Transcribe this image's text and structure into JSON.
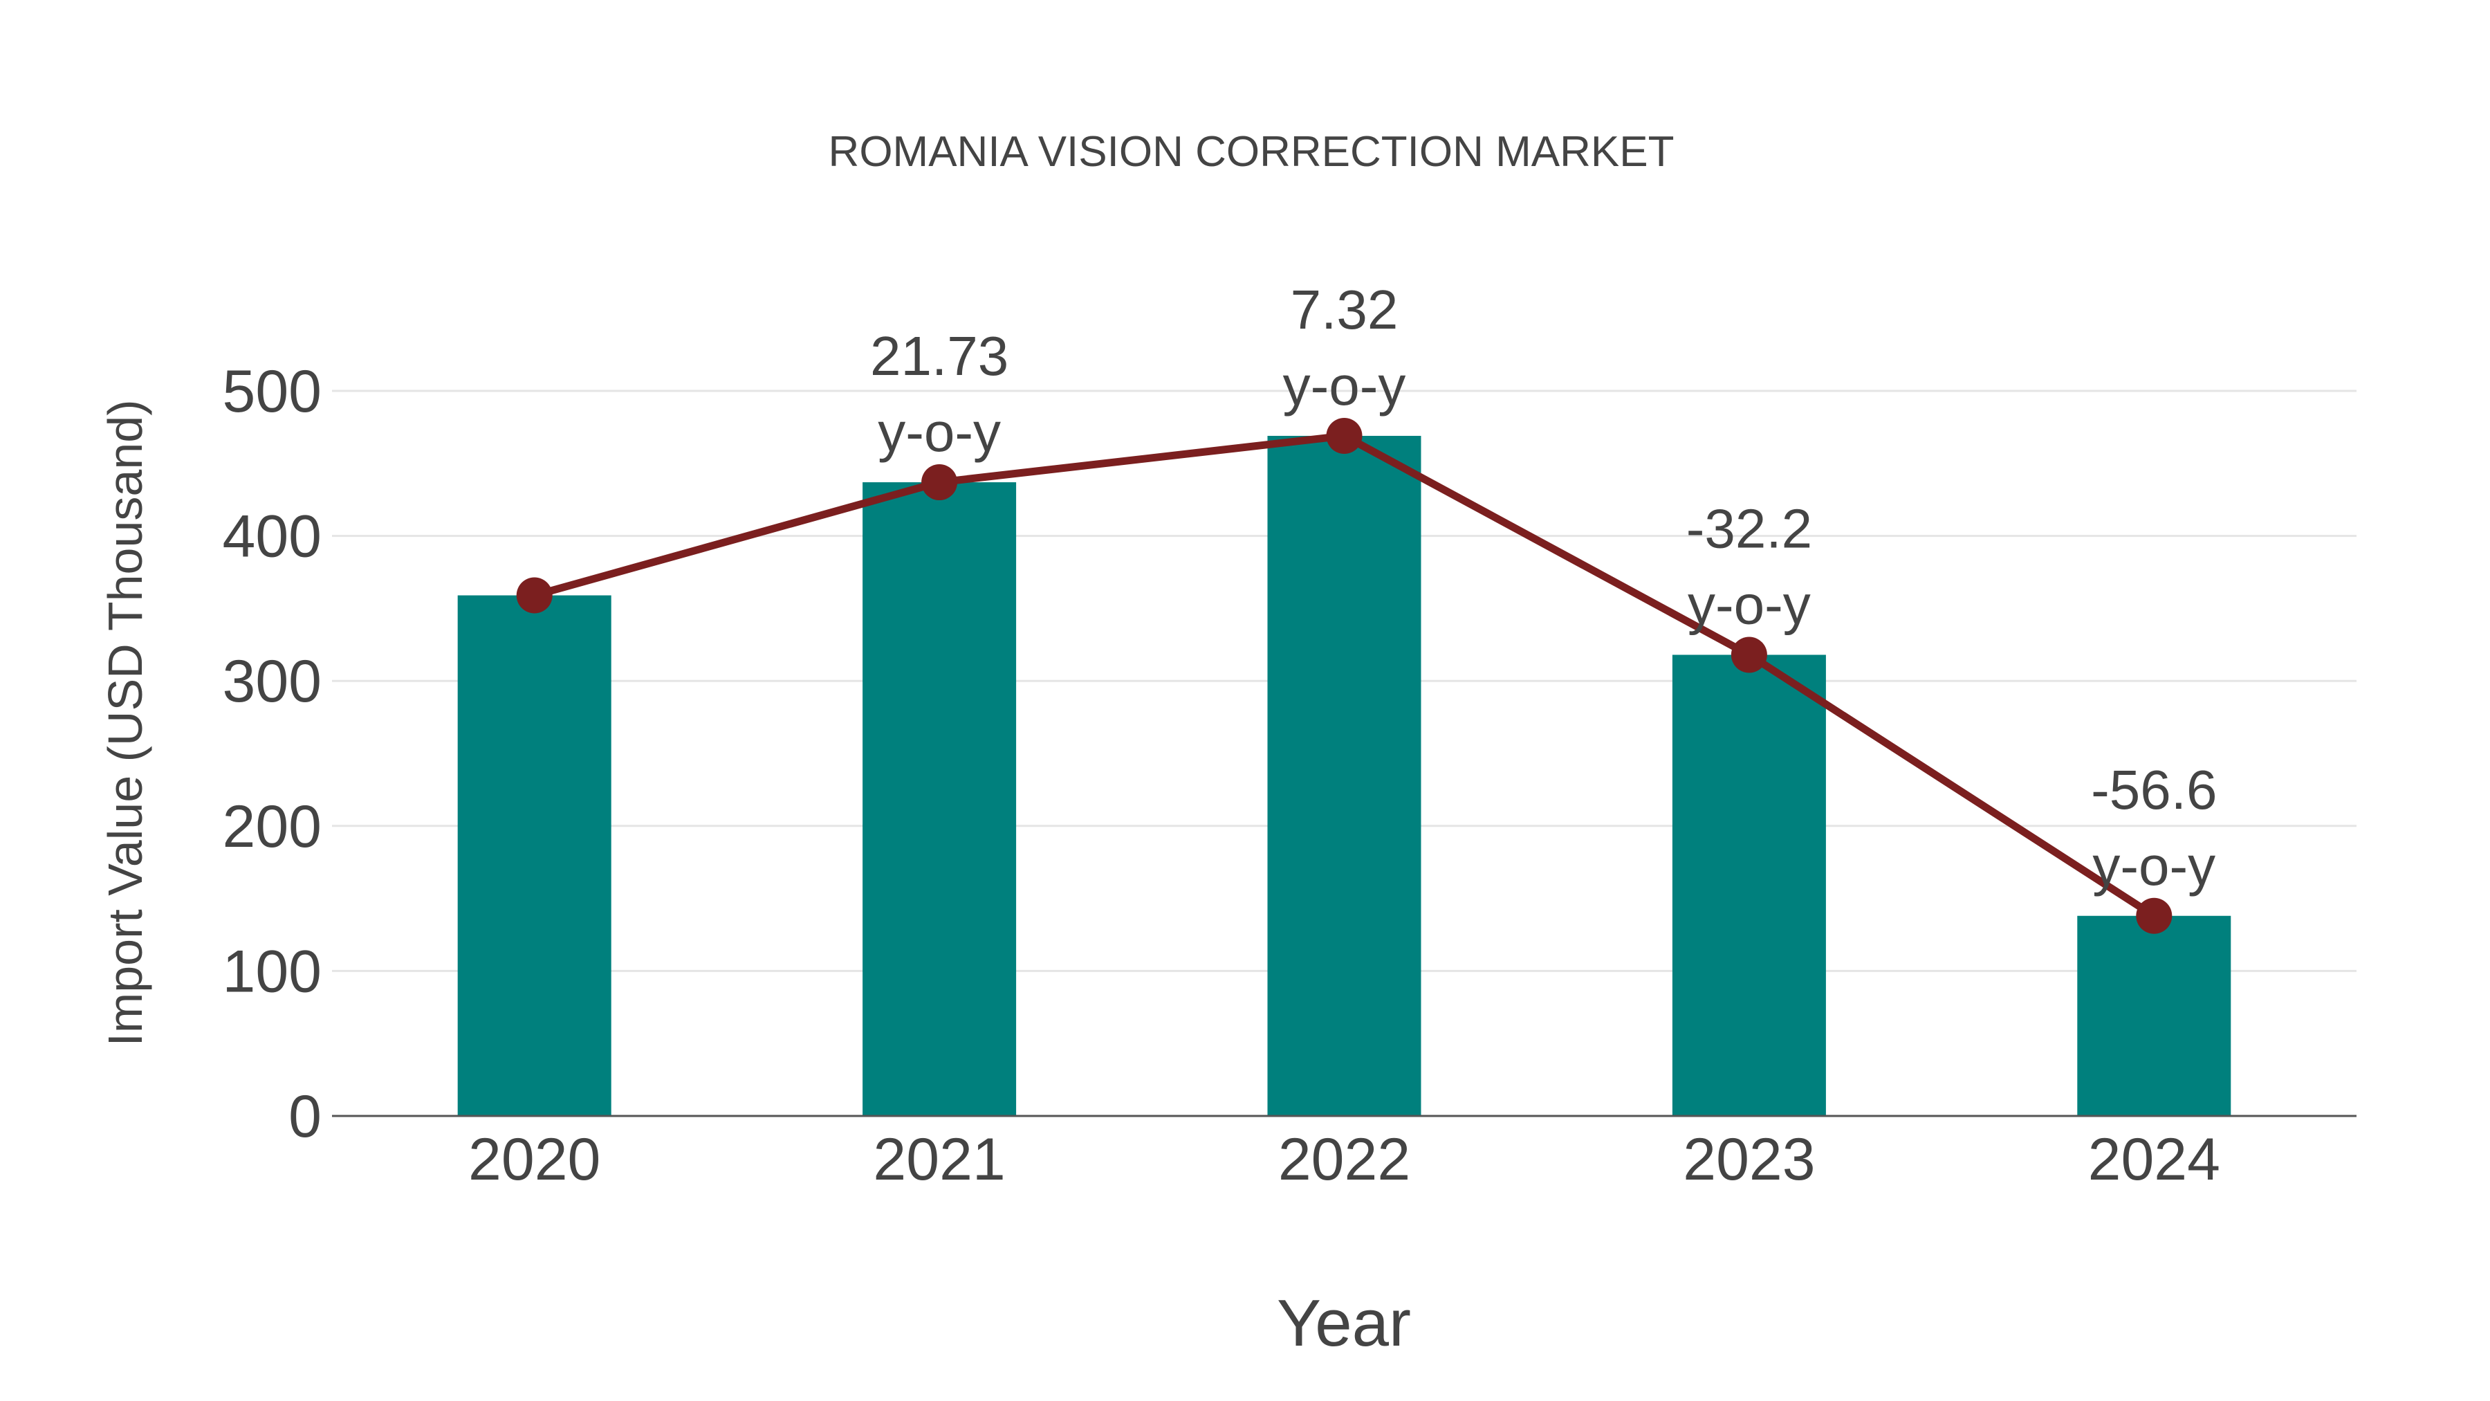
{
  "chart_data": {
    "type": "bar",
    "title": "ROMANIA VISION CORRECTION MARKET",
    "xlabel": "Year",
    "ylabel": "Import Value (USD Thousand)",
    "categories": [
      "2020",
      "2021",
      "2022",
      "2023",
      "2024"
    ],
    "series": [
      {
        "name": "Import Value (bar)",
        "type": "bar",
        "values": [
          359,
          437,
          469,
          318,
          138
        ],
        "color": "#00807D"
      },
      {
        "name": "Import Value (line)",
        "type": "line",
        "values": [
          359,
          437,
          469,
          318,
          138
        ],
        "color": "#7B1F1F"
      }
    ],
    "annotations": [
      {
        "category": "2021",
        "value": "21.73",
        "suffix": "y-o-y"
      },
      {
        "category": "2022",
        "value": "7.32",
        "suffix": "y-o-y"
      },
      {
        "category": "2023",
        "value": "-32.2",
        "suffix": "y-o-y"
      },
      {
        "category": "2024",
        "value": "-56.6",
        "suffix": "y-o-y"
      }
    ],
    "yticks": [
      0,
      100,
      200,
      300,
      400,
      500
    ],
    "ylim": [
      0,
      500
    ],
    "grid": true,
    "legend": "none"
  },
  "colors": {
    "bar": "#00807D",
    "line": "#7B1F1F",
    "text": "#444444",
    "grid": "#E5E5E5",
    "axis": "#555555"
  }
}
